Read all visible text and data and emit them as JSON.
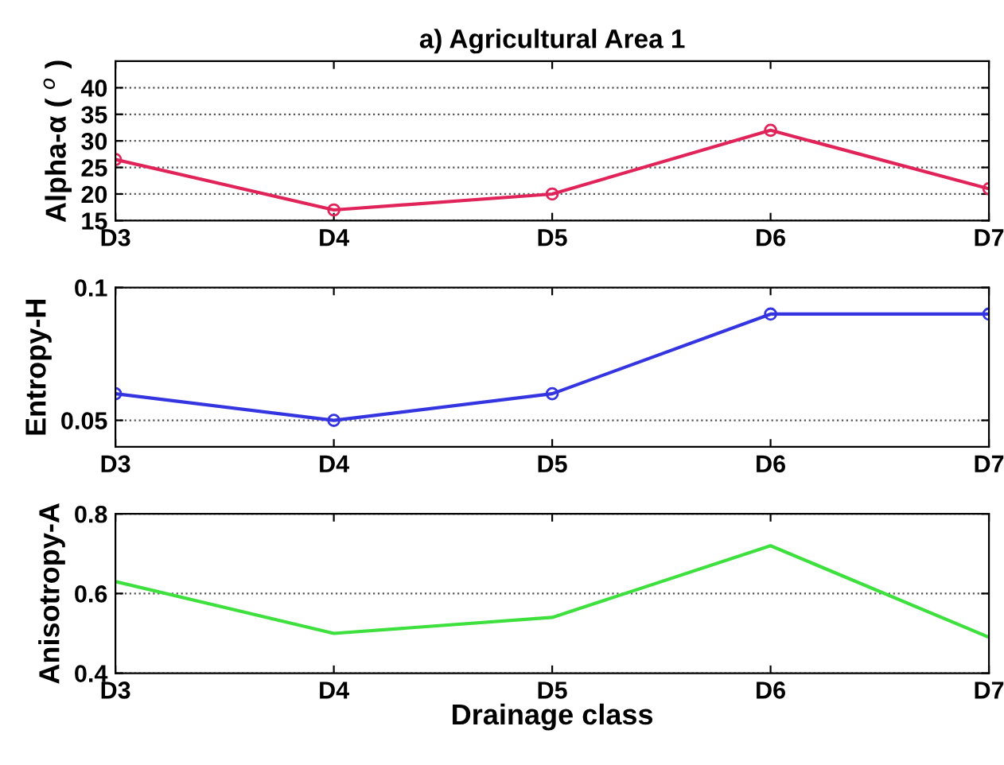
{
  "chart_data": [
    {
      "type": "line",
      "title": "a) Agricultural Area 1",
      "ylabel": "Alpha-α ( $^{o}$ )",
      "categories": [
        "D3",
        "D4",
        "D5",
        "D6",
        "D7"
      ],
      "series": [
        {
          "color": "#e0245a",
          "values": [
            26.5,
            17,
            20,
            32,
            21
          ]
        }
      ],
      "ylim": [
        15,
        45
      ],
      "yticks": [
        15,
        20,
        25,
        30,
        35,
        40
      ],
      "grid": "y",
      "marker": "circle",
      "line_style": "solid"
    },
    {
      "type": "line",
      "ylabel": "Entropy-H",
      "categories": [
        "D3",
        "D4",
        "D5",
        "D6",
        "D7"
      ],
      "series": [
        {
          "color": "#3434e0",
          "values": [
            0.06,
            0.05,
            0.06,
            0.09,
            0.09
          ]
        }
      ],
      "ylim": [
        0.04,
        0.1
      ],
      "yticks": [
        0.05,
        0.1
      ],
      "grid": "y",
      "marker": "circle",
      "line_style": "solid"
    },
    {
      "type": "line",
      "ylabel": "Anisotropy-A",
      "xlabel": "Drainage class",
      "categories": [
        "D3",
        "D4",
        "D5",
        "D6",
        "D7"
      ],
      "series": [
        {
          "color": "#3ee03e",
          "values": [
            0.63,
            0.5,
            0.54,
            0.72,
            0.49
          ]
        }
      ],
      "ylim": [
        0.4,
        0.8
      ],
      "yticks": [
        0.4,
        0.6,
        0.8
      ],
      "grid": "y",
      "marker": "none",
      "line_style": "solid"
    }
  ]
}
